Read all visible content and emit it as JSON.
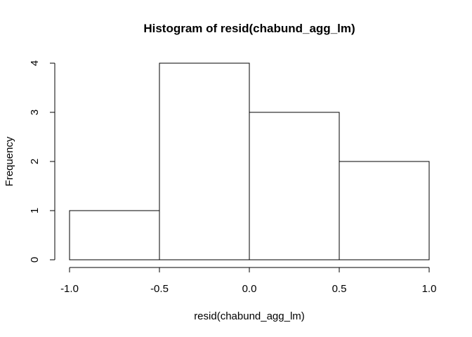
{
  "chart_data": {
    "type": "bar",
    "subtype": "histogram",
    "title": "Histogram of resid(chabund_agg_lm)",
    "xlabel": "resid(chabund_agg_lm)",
    "ylabel": "Frequency",
    "bins": [
      {
        "start": -1.0,
        "end": -0.5,
        "count": 1
      },
      {
        "start": -0.5,
        "end": 0.0,
        "count": 4
      },
      {
        "start": 0.0,
        "end": 0.5,
        "count": 3
      },
      {
        "start": 0.5,
        "end": 1.0,
        "count": 2
      }
    ],
    "xlim": [
      -1.0,
      1.0
    ],
    "ylim": [
      0,
      4
    ],
    "xticks": [
      {
        "value": -1.0,
        "label": "-1.0"
      },
      {
        "value": -0.5,
        "label": "-0.5"
      },
      {
        "value": 0.0,
        "label": "0.0"
      },
      {
        "value": 0.5,
        "label": "0.5"
      },
      {
        "value": 1.0,
        "label": "1.0"
      }
    ],
    "yticks": [
      {
        "value": 0,
        "label": "0"
      },
      {
        "value": 1,
        "label": "1"
      },
      {
        "value": 2,
        "label": "2"
      },
      {
        "value": 3,
        "label": "3"
      },
      {
        "value": 4,
        "label": "4"
      }
    ],
    "grid": false,
    "bar_fill": "#ffffff",
    "bar_stroke": "#000000"
  }
}
